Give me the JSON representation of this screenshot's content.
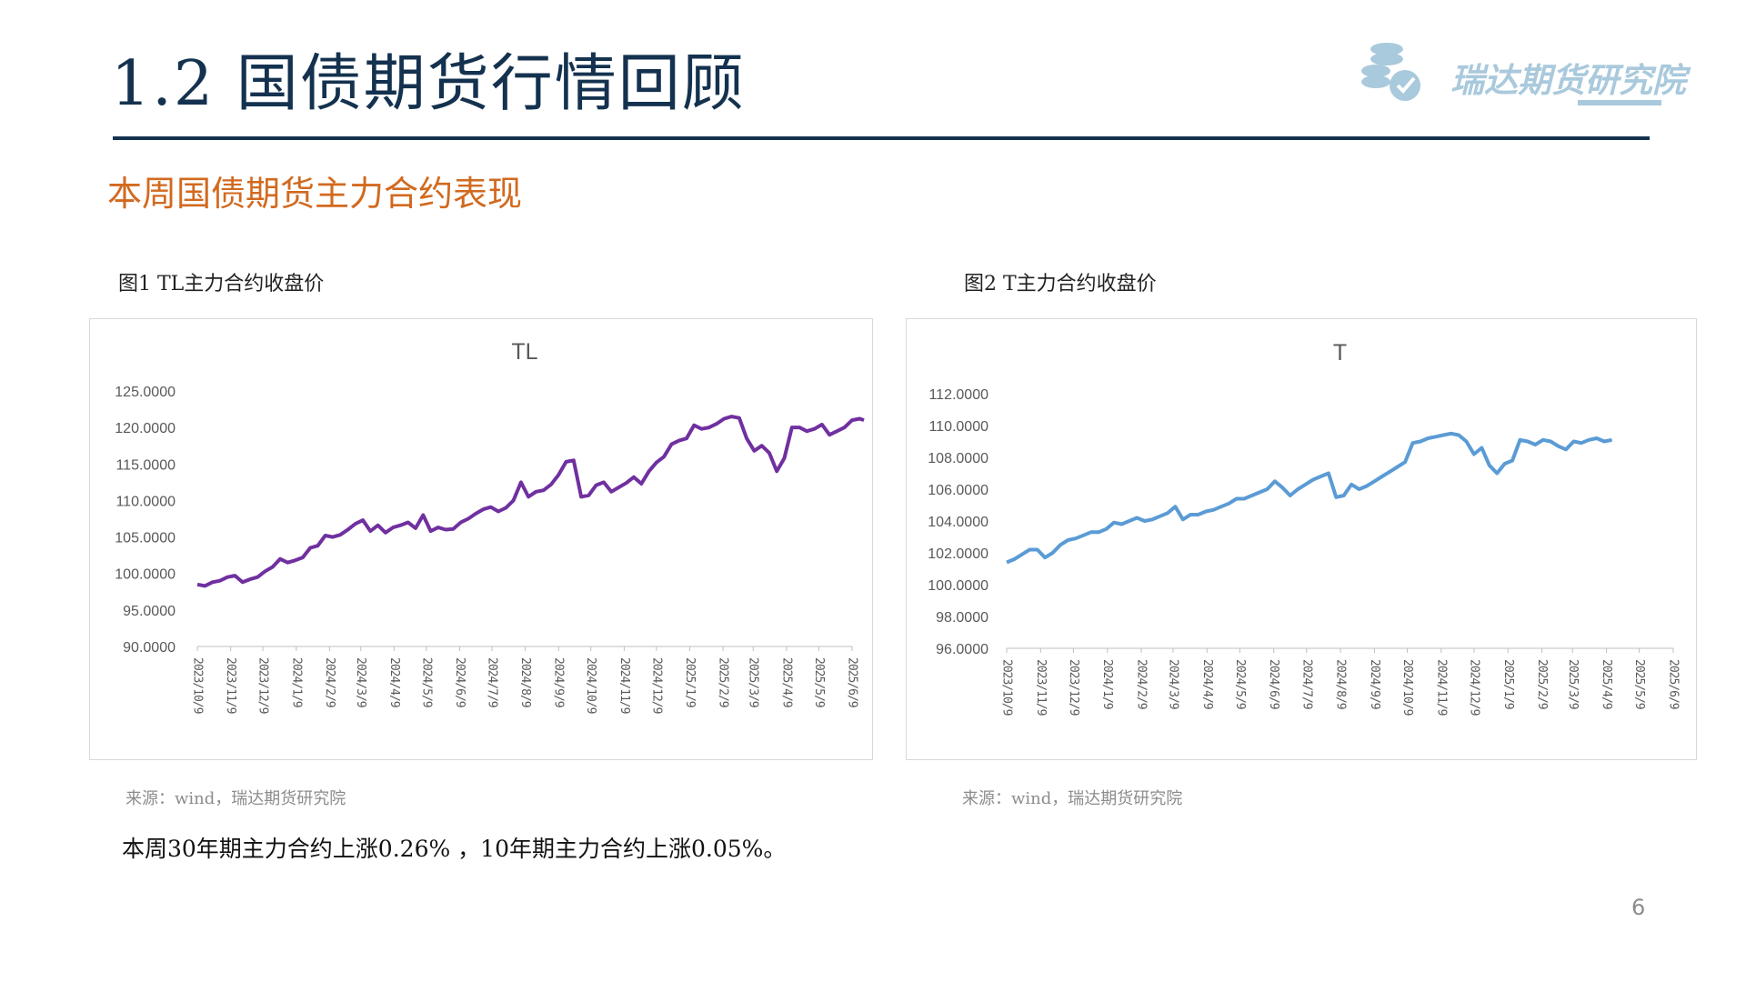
{
  "header": {
    "title": "1.2 国债期货行情回顾",
    "logo_text": "瑞达期货研究院"
  },
  "subtitle": "本周国债期货主力合约表现",
  "figures": [
    {
      "caption": "图1 TL主力合约收盘价",
      "source": "来源：wind，瑞达期货研究院"
    },
    {
      "caption": "图2 T主力合约收盘价",
      "source": "来源：wind，瑞达期货研究院"
    }
  ],
  "summary": "本周30年期主力合约上涨0.26% ，10年期主力合约上涨0.05%。",
  "page_number": "6",
  "colors": {
    "navy": "#14324f",
    "orange": "#d2691e",
    "tl_line": "#7030a0",
    "t_line": "#5b9bd5",
    "logo": "#a9c9dc"
  },
  "chart_data": [
    {
      "type": "line",
      "title": "TL",
      "xlabel": "",
      "ylabel": "",
      "ylim": [
        90,
        125
      ],
      "yticks": [
        "125.0000",
        "120.0000",
        "115.0000",
        "110.0000",
        "105.0000",
        "100.0000",
        "95.0000",
        "90.0000"
      ],
      "x_tick_labels": [
        "2023/10/9",
        "2023/11/9",
        "2023/12/9",
        "2024/1/9",
        "2024/2/9",
        "2024/3/9",
        "2024/4/9",
        "2024/5/9",
        "2024/6/9",
        "2024/7/9",
        "2024/8/9",
        "2024/9/9",
        "2024/10/9",
        "2024/11/9",
        "2024/12/9",
        "2025/1/9",
        "2025/2/9",
        "2025/3/9",
        "2025/4/9",
        "2025/5/9",
        "2025/6/9"
      ],
      "grid": false,
      "legend": "none",
      "series": [
        {
          "color": "#7030a0",
          "values": [
            [
              "2023/10/9",
              98.5
            ],
            [
              "2023/10/16",
              98.3
            ],
            [
              "2023/10/23",
              98.8
            ],
            [
              "2023/10/30",
              99.0
            ],
            [
              "2023/11/6",
              99.5
            ],
            [
              "2023/11/13",
              99.7
            ],
            [
              "2023/11/20",
              98.8
            ],
            [
              "2023/11/27",
              99.2
            ],
            [
              "2023/12/4",
              99.5
            ],
            [
              "2023/12/11",
              100.3
            ],
            [
              "2023/12/18",
              100.9
            ],
            [
              "2023/12/25",
              102.0
            ],
            [
              "2024/1/1",
              101.5
            ],
            [
              "2024/1/8",
              101.8
            ],
            [
              "2024/1/15",
              102.2
            ],
            [
              "2024/1/22",
              103.5
            ],
            [
              "2024/1/29",
              103.8
            ],
            [
              "2024/2/5",
              105.2
            ],
            [
              "2024/2/12",
              105.0
            ],
            [
              "2024/2/19",
              105.3
            ],
            [
              "2024/2/26",
              106.0
            ],
            [
              "2024/3/4",
              106.8
            ],
            [
              "2024/3/11",
              107.3
            ],
            [
              "2024/3/18",
              105.8
            ],
            [
              "2024/3/25",
              106.6
            ],
            [
              "2024/4/1",
              105.6
            ],
            [
              "2024/4/8",
              106.3
            ],
            [
              "2024/4/15",
              106.6
            ],
            [
              "2024/4/22",
              107.0
            ],
            [
              "2024/4/29",
              106.2
            ],
            [
              "2024/5/6",
              108.0
            ],
            [
              "2024/5/13",
              105.8
            ],
            [
              "2024/5/20",
              106.3
            ],
            [
              "2024/5/27",
              106.0
            ],
            [
              "2024/6/3",
              106.1
            ],
            [
              "2024/6/10",
              107.0
            ],
            [
              "2024/6/17",
              107.5
            ],
            [
              "2024/6/24",
              108.2
            ],
            [
              "2024/7/1",
              108.8
            ],
            [
              "2024/7/8",
              109.1
            ],
            [
              "2024/7/15",
              108.5
            ],
            [
              "2024/7/22",
              109.0
            ],
            [
              "2024/7/29",
              110.0
            ],
            [
              "2024/8/5",
              112.5
            ],
            [
              "2024/8/12",
              110.5
            ],
            [
              "2024/8/19",
              111.2
            ],
            [
              "2024/8/26",
              111.4
            ],
            [
              "2024/9/2",
              112.2
            ],
            [
              "2024/9/9",
              113.5
            ],
            [
              "2024/9/16",
              115.3
            ],
            [
              "2024/9/23",
              115.5
            ],
            [
              "2024/9/30",
              110.5
            ],
            [
              "2024/10/7",
              110.7
            ],
            [
              "2024/10/14",
              112.1
            ],
            [
              "2024/10/21",
              112.5
            ],
            [
              "2024/10/28",
              111.2
            ],
            [
              "2024/11/4",
              111.8
            ],
            [
              "2024/11/11",
              112.4
            ],
            [
              "2024/11/18",
              113.2
            ],
            [
              "2024/11/25",
              112.3
            ],
            [
              "2024/12/2",
              114.0
            ],
            [
              "2024/12/9",
              115.2
            ],
            [
              "2024/12/16",
              116.0
            ],
            [
              "2024/12/23",
              117.7
            ],
            [
              "2024/12/30",
              118.2
            ],
            [
              "2025/1/6",
              118.5
            ],
            [
              "2025/1/13",
              120.3
            ],
            [
              "2025/1/20",
              119.8
            ],
            [
              "2025/1/27",
              120.0
            ],
            [
              "2025/2/3",
              120.5
            ],
            [
              "2025/2/10",
              121.2
            ],
            [
              "2025/2/17",
              121.5
            ],
            [
              "2025/2/24",
              121.3
            ],
            [
              "2025/3/3",
              118.5
            ],
            [
              "2025/3/10",
              116.8
            ],
            [
              "2025/3/17",
              117.5
            ],
            [
              "2025/3/24",
              116.5
            ],
            [
              "2025/3/31",
              114.0
            ],
            [
              "2025/4/7",
              115.8
            ],
            [
              "2025/4/14",
              120.0
            ],
            [
              "2025/4/21",
              120.0
            ],
            [
              "2025/4/28",
              119.5
            ],
            [
              "2025/5/5",
              119.8
            ],
            [
              "2025/5/12",
              120.4
            ],
            [
              "2025/5/19",
              119.0
            ],
            [
              "2025/5/26",
              119.5
            ],
            [
              "2025/6/2",
              120.0
            ],
            [
              "2025/6/9",
              121.0
            ],
            [
              "2025/6/16",
              121.2
            ],
            [
              "2025/6/20",
              121.0
            ]
          ]
        }
      ]
    },
    {
      "type": "line",
      "title": "T",
      "xlabel": "",
      "ylabel": "",
      "ylim": [
        96,
        112
      ],
      "yticks": [
        "112.0000",
        "110.0000",
        "108.0000",
        "106.0000",
        "104.0000",
        "102.0000",
        "100.0000",
        "98.0000",
        "96.0000"
      ],
      "x_tick_labels": [
        "2023/10/9",
        "2023/11/9",
        "2023/12/9",
        "2024/1/9",
        "2024/2/9",
        "2024/3/9",
        "2024/4/9",
        "2024/5/9",
        "2024/6/9",
        "2024/7/9",
        "2024/8/9",
        "2024/9/9",
        "2024/10/9",
        "2024/11/9",
        "2024/12/9",
        "2025/1/9",
        "2025/2/9",
        "2025/3/9",
        "2025/4/9",
        "2025/5/9",
        "2025/6/9"
      ],
      "grid": false,
      "legend": "none",
      "series": [
        {
          "color": "#5b9bd5",
          "values": [
            [
              "2023/10/9",
              101.4
            ],
            [
              "2023/10/16",
              101.6
            ],
            [
              "2023/10/23",
              101.9
            ],
            [
              "2023/10/30",
              102.2
            ],
            [
              "2023/11/6",
              102.2
            ],
            [
              "2023/11/13",
              101.7
            ],
            [
              "2023/11/20",
              102.0
            ],
            [
              "2023/11/27",
              102.5
            ],
            [
              "2023/12/4",
              102.8
            ],
            [
              "2023/12/11",
              102.9
            ],
            [
              "2023/12/18",
              103.1
            ],
            [
              "2023/12/25",
              103.3
            ],
            [
              "2024/1/1",
              103.3
            ],
            [
              "2024/1/8",
              103.5
            ],
            [
              "2024/1/15",
              103.9
            ],
            [
              "2024/1/22",
              103.8
            ],
            [
              "2024/1/29",
              104.0
            ],
            [
              "2024/2/5",
              104.2
            ],
            [
              "2024/2/12",
              104.0
            ],
            [
              "2024/2/19",
              104.1
            ],
            [
              "2024/2/26",
              104.3
            ],
            [
              "2024/3/4",
              104.5
            ],
            [
              "2024/3/11",
              104.9
            ],
            [
              "2024/3/18",
              104.1
            ],
            [
              "2024/3/25",
              104.4
            ],
            [
              "2024/4/1",
              104.4
            ],
            [
              "2024/4/8",
              104.6
            ],
            [
              "2024/4/15",
              104.7
            ],
            [
              "2024/4/22",
              104.9
            ],
            [
              "2024/4/29",
              105.1
            ],
            [
              "2024/5/6",
              105.4
            ],
            [
              "2024/5/13",
              105.4
            ],
            [
              "2024/5/20",
              105.6
            ],
            [
              "2024/5/27",
              105.8
            ],
            [
              "2024/6/3",
              106.0
            ],
            [
              "2024/6/10",
              106.5
            ],
            [
              "2024/6/17",
              106.1
            ],
            [
              "2024/6/24",
              105.6
            ],
            [
              "2024/7/1",
              106.0
            ],
            [
              "2024/7/8",
              106.3
            ],
            [
              "2024/7/15",
              106.6
            ],
            [
              "2024/7/22",
              106.8
            ],
            [
              "2024/7/29",
              107.0
            ],
            [
              "2024/8/5",
              105.5
            ],
            [
              "2024/8/12",
              105.6
            ],
            [
              "2024/8/19",
              106.3
            ],
            [
              "2024/8/26",
              106.0
            ],
            [
              "2024/9/2",
              106.2
            ],
            [
              "2024/9/9",
              106.5
            ],
            [
              "2024/9/16",
              106.8
            ],
            [
              "2024/9/23",
              107.1
            ],
            [
              "2024/9/30",
              107.4
            ],
            [
              "2024/10/7",
              107.7
            ],
            [
              "2024/10/14",
              108.9
            ],
            [
              "2024/10/21",
              109.0
            ],
            [
              "2024/10/28",
              109.2
            ],
            [
              "2024/11/4",
              109.3
            ],
            [
              "2024/11/11",
              109.4
            ],
            [
              "2024/11/18",
              109.5
            ],
            [
              "2024/11/25",
              109.4
            ],
            [
              "2024/12/2",
              109.0
            ],
            [
              "2024/12/9",
              108.2
            ],
            [
              "2024/12/16",
              108.6
            ],
            [
              "2024/12/23",
              107.5
            ],
            [
              "2024/12/30",
              107.0
            ],
            [
              "2025/1/6",
              107.6
            ],
            [
              "2025/1/13",
              107.8
            ],
            [
              "2025/1/20",
              109.1
            ],
            [
              "2025/1/27",
              109.0
            ],
            [
              "2025/2/3",
              108.8
            ],
            [
              "2025/2/10",
              109.1
            ],
            [
              "2025/2/17",
              109.0
            ],
            [
              "2025/2/24",
              108.7
            ],
            [
              "2025/3/3",
              108.5
            ],
            [
              "2025/3/10",
              109.0
            ],
            [
              "2025/3/17",
              108.9
            ],
            [
              "2025/3/24",
              109.1
            ],
            [
              "2025/3/31",
              109.2
            ],
            [
              "2025/4/7",
              109.0
            ],
            [
              "2025/4/14",
              109.1
            ]
          ]
        }
      ]
    }
  ]
}
